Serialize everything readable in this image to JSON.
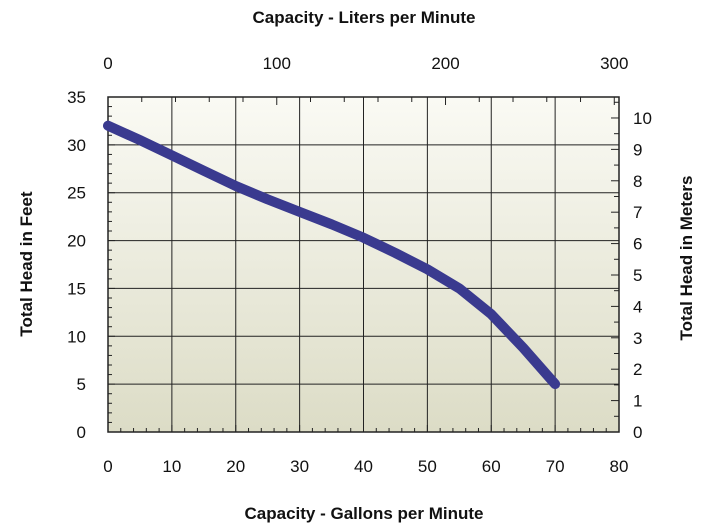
{
  "chart_data": {
    "type": "line",
    "title": "",
    "xlabel": "Capacity - Gallons per Minute",
    "x2label": "Capacity - Liters per Minute",
    "ylabel": "Total Head in Feet",
    "y2label": "Total Head in Meters",
    "xlim": [
      0,
      80
    ],
    "ylim": [
      0,
      35
    ],
    "x2lim": [
      0,
      302.8
    ],
    "y2lim": [
      0,
      10.668
    ],
    "x_ticks": [
      "0",
      "10",
      "20",
      "30",
      "40",
      "50",
      "60",
      "70",
      "80"
    ],
    "y_ticks": [
      "0",
      "5",
      "10",
      "15",
      "20",
      "25",
      "30",
      "35"
    ],
    "x2_ticks": [
      "0",
      "100",
      "200",
      "300"
    ],
    "y2_ticks": [
      "0",
      "1",
      "2",
      "3",
      "4",
      "5",
      "6",
      "7",
      "8",
      "9",
      "10"
    ],
    "grid": true,
    "line_color": "#3a3a8f",
    "series": [
      {
        "x": [
          0,
          5,
          10,
          15,
          20,
          25,
          30,
          35,
          40,
          45,
          50,
          55,
          60,
          65,
          70
        ],
        "values": [
          32,
          30.5,
          28.9,
          27.3,
          25.7,
          24.3,
          23,
          21.7,
          20.3,
          18.7,
          17,
          15,
          12.3,
          8.8,
          5
        ]
      }
    ]
  }
}
